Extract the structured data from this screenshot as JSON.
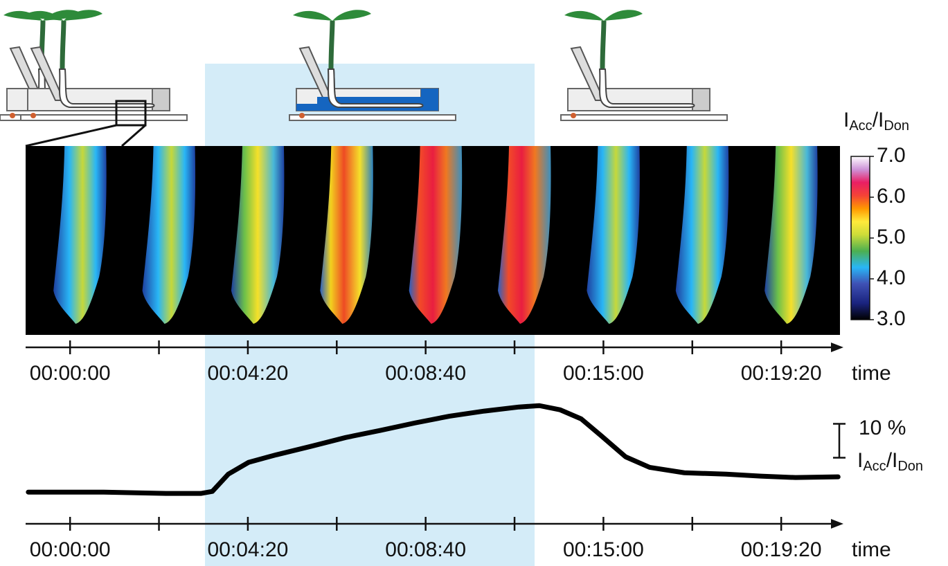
{
  "colorbar": {
    "title_parts": [
      "I",
      "Acc",
      "/I",
      "Don"
    ],
    "lim": [
      3,
      7
    ],
    "ticks": [
      {
        "value": 3,
        "label": "3.0"
      },
      {
        "value": 4,
        "label": "4.0"
      },
      {
        "value": 5,
        "label": "5.0"
      },
      {
        "value": 6,
        "label": "6.0"
      },
      {
        "value": 7,
        "label": "7.0"
      }
    ]
  },
  "chart_data": {
    "type": "line",
    "xlabel": "time",
    "xlim": [
      -0.5,
      8.7
    ],
    "xticks": [
      0,
      1,
      2,
      3,
      4,
      5,
      6,
      7,
      8
    ],
    "xticklabels": [
      {
        "value": 0,
        "label": "00:00:00"
      },
      {
        "value": 2,
        "label": "00:04:20"
      },
      {
        "value": 4,
        "label": "00:08:40"
      },
      {
        "value": 6,
        "label": "00:15:00"
      },
      {
        "value": 8,
        "label": "00:19:20"
      }
    ],
    "ylim": [
      -2,
      28
    ],
    "scale_bar": {
      "value": 10,
      "label": "10 %"
    },
    "ylabel_parts": [
      "I",
      "Acc",
      "/I",
      "Don"
    ],
    "series": [
      {
        "color": "#000000",
        "x": [
          -0.47,
          0.38,
          1.08,
          1.47,
          1.6,
          1.78,
          2.01,
          2.32,
          2.71,
          3.1,
          3.49,
          3.88,
          4.27,
          4.66,
          5.05,
          5.28,
          5.51,
          5.75,
          5.98,
          6.25,
          6.52,
          6.91,
          7.38,
          7.77,
          8.16,
          8.64
        ],
        "values": [
          0,
          0,
          -0.4,
          -0.4,
          0.2,
          5.3,
          8.8,
          11,
          13.5,
          16.1,
          18.2,
          20.4,
          22.4,
          23.9,
          25.1,
          25.5,
          24.3,
          21.6,
          16.5,
          10.4,
          7.3,
          5.7,
          5.3,
          4.7,
          4.3,
          4.5
        ]
      }
    ]
  }
}
